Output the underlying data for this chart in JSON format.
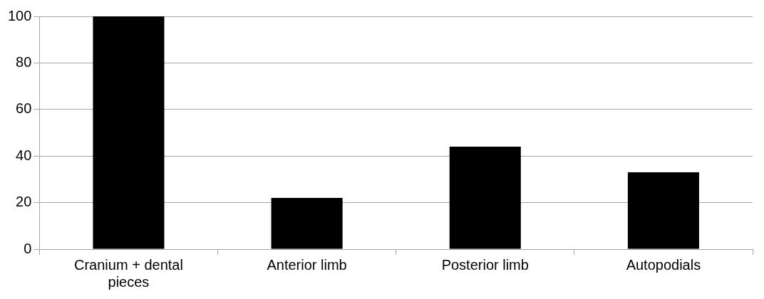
{
  "chart_data": {
    "type": "bar",
    "categories": [
      "Cranium + dental pieces",
      "Anterior limb",
      "Posterior limb",
      "Autopodials"
    ],
    "values": [
      100,
      22,
      44,
      33
    ],
    "color": "#000000",
    "ylim": [
      0,
      100
    ],
    "yticks": [
      0,
      20,
      40,
      60,
      80,
      100
    ],
    "grid": "y",
    "legend": false
  }
}
